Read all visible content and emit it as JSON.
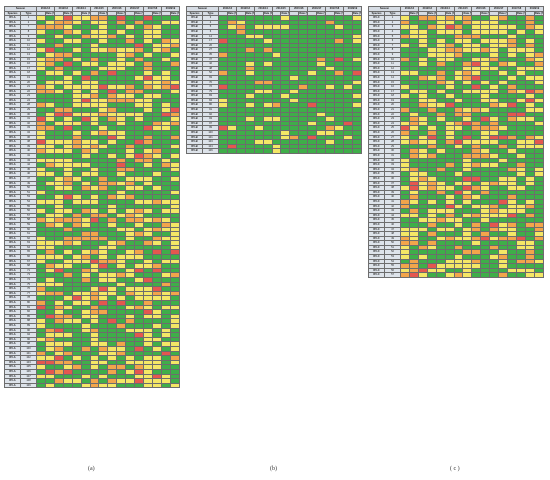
{
  "headers": {
    "row1_first": "Season",
    "seasons": [
      "2011/12",
      "2012/13",
      "2013/14",
      "2014/15",
      "2015/16",
      "2016/17",
      "2017/18",
      "2018/19"
    ],
    "row2_first": "Species",
    "row2_second": "Type",
    "rate": "Rate (%)"
  },
  "colors": {
    "green": "#3fae49",
    "yellow": "#f4e766",
    "orange": "#f2a54b",
    "red": "#e4574f",
    "header": "#d6dce4"
  },
  "tables": [
    {
      "caption": "(a)",
      "species": "RV-A",
      "types": [
        1,
        2,
        7,
        8,
        9,
        10,
        11,
        12,
        13,
        15,
        16,
        17,
        18,
        19,
        20,
        21,
        22,
        23,
        24,
        28,
        29,
        30,
        31,
        32,
        33,
        34,
        36,
        38,
        39,
        40,
        41,
        43,
        44,
        45,
        46,
        47,
        49,
        50,
        51,
        53,
        54,
        55,
        56,
        57,
        58,
        59,
        60,
        61,
        62,
        63,
        64,
        65,
        66,
        67,
        68,
        71,
        73,
        74,
        75,
        76,
        77,
        78,
        80,
        81,
        82,
        85,
        88,
        89,
        90,
        94,
        96,
        98,
        100,
        101,
        102,
        103,
        105,
        106,
        107,
        108,
        109
      ]
    },
    {
      "caption": "(b)",
      "species": "RV-B",
      "types": [
        3,
        4,
        5,
        6,
        14,
        17,
        26,
        27,
        35,
        37,
        42,
        48,
        52,
        69,
        70,
        72,
        79,
        83,
        84,
        86,
        91,
        92,
        93,
        97,
        99,
        100,
        101,
        103,
        104,
        106
      ]
    },
    {
      "caption": "( c )",
      "species": "RV-C",
      "types": [
        1,
        2,
        3,
        4,
        5,
        6,
        7,
        8,
        9,
        10,
        11,
        12,
        13,
        14,
        15,
        16,
        17,
        18,
        19,
        20,
        21,
        22,
        23,
        24,
        25,
        26,
        27,
        28,
        29,
        30,
        31,
        32,
        33,
        34,
        35,
        36,
        37,
        38,
        39,
        40,
        41,
        42,
        43,
        44,
        45,
        46,
        47,
        48,
        49,
        50,
        51,
        52,
        53,
        54,
        55,
        56,
        57
      ]
    }
  ]
}
